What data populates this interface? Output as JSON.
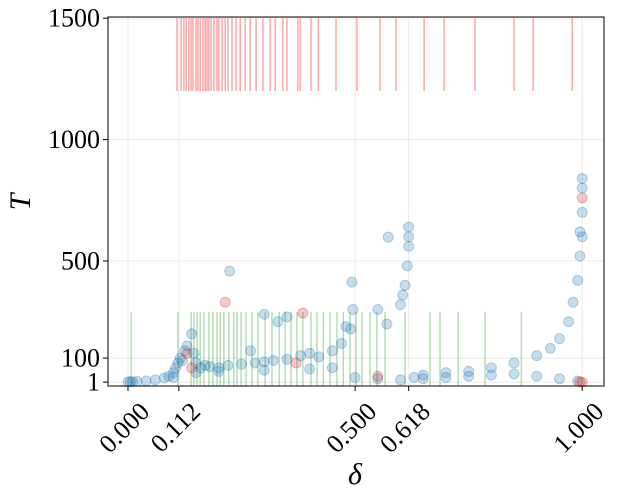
{
  "chart_data": {
    "type": "scatter",
    "x_label": "δ",
    "y_label": "T",
    "xlim": [
      -0.044,
      1.048
    ],
    "ylim": [
      -15,
      1505
    ],
    "xticks": [
      {
        "value": 0,
        "label": "0.000"
      },
      {
        "value": 0.112,
        "label": "0.112"
      },
      {
        "value": 0.5,
        "label": "0.500"
      },
      {
        "value": 0.618,
        "label": "0.618"
      },
      {
        "value": 1,
        "label": "1.000"
      }
    ],
    "yticks": [
      1,
      100,
      500,
      1000,
      1500
    ],
    "grid": true,
    "series": [
      {
        "color": "#1f77b4",
        "x": [
          0,
          0.01,
          0.005,
          0.02,
          0.04,
          0.06,
          0.08,
          0.09,
          0.1,
          0.105,
          0.11,
          0.115,
          0.12,
          0.125,
          0.13,
          0.14,
          0.145,
          0.15,
          0.16,
          0.17,
          0.18,
          0.2,
          0.22,
          0.25,
          0.28,
          0.3,
          0.32,
          0.35,
          0.38,
          0.4,
          0.42,
          0.45,
          0.47,
          0.48,
          0.49,
          0.495,
          0.224,
          0.3,
          0.33,
          0.27,
          0.35,
          0.493,
          0.55,
          0.57,
          0.6,
          0.605,
          0.61,
          0.615,
          0.618,
          0.618,
          0.618,
          0.573,
          0.63,
          0.65,
          0.7,
          0.75,
          0.8,
          0.85,
          0.9,
          0.93,
          0.95,
          0.97,
          0.98,
          0.99,
          0.995,
          1,
          1,
          1,
          1,
          0.995,
          0.5,
          0.55,
          0.6,
          0.65,
          0.7,
          0.75,
          0.8,
          0.85,
          0.9,
          0.95,
          0.99,
          0.1,
          0.15,
          0.2,
          0.3,
          0.4,
          0.45
        ],
        "y": [
          2,
          2.5,
          3,
          4,
          6,
          10,
          18,
          25,
          40,
          60,
          80,
          100,
          90,
          130,
          150,
          200,
          120,
          80,
          60,
          70,
          65,
          60,
          70,
          75,
          80,
          85,
          90,
          95,
          110,
          120,
          105,
          130,
          160,
          230,
          220,
          300,
          458,
          280,
          250,
          130,
          270,
          413,
          300,
          240,
          320,
          360,
          400,
          480,
          560,
          600,
          640,
          598,
          20,
          30,
          40,
          45,
          60,
          80,
          110,
          140,
          180,
          250,
          330,
          420,
          520,
          600,
          700,
          800,
          840,
          620,
          20,
          15,
          10,
          15,
          20,
          25,
          30,
          35,
          25,
          15,
          5,
          20,
          40,
          45,
          50,
          55,
          60
        ]
      },
      {
        "color": "#d62728",
        "x": [
          0.214,
          0.385,
          0.13,
          0.14,
          0.37,
          0.55,
          1,
          1,
          0.995
        ],
        "y": [
          330,
          285,
          120,
          60,
          80,
          25,
          760,
          1,
          2
        ]
      }
    ],
    "rugs": [
      {
        "color": "#ff0000",
        "range": [
          1200,
          1500
        ],
        "x": [
          0.108,
          0.117,
          0.123,
          0.128,
          0.134,
          0.139,
          0.143,
          0.15,
          0.154,
          0.159,
          0.165,
          0.17,
          0.174,
          0.178,
          0.183,
          0.189,
          0.196,
          0.2,
          0.207,
          0.214,
          0.22,
          0.229,
          0.238,
          0.247,
          0.258,
          0.269,
          0.282,
          0.297,
          0.313,
          0.324,
          0.341,
          0.35,
          0.374,
          0.379,
          0.403,
          0.419,
          0.458,
          0.504,
          0.555,
          0.59,
          0.652,
          0.696,
          0.764,
          0.85,
          0.892,
          0.978
        ]
      },
      {
        "color": "#2ca02c",
        "range": [
          -15,
          290
        ],
        "x": [
          0.007,
          0.11,
          0.139,
          0.145,
          0.152,
          0.159,
          0.167,
          0.178,
          0.187,
          0.196,
          0.203,
          0.211,
          0.222,
          0.233,
          0.24,
          0.249,
          0.26,
          0.273,
          0.286,
          0.302,
          0.317,
          0.333,
          0.346,
          0.359,
          0.372,
          0.385,
          0.403,
          0.416,
          0.43,
          0.445,
          0.46,
          0.474,
          0.489,
          0.502,
          0.515,
          0.533,
          0.548,
          0.566,
          0.61,
          0.665,
          0.687,
          0.727,
          0.786,
          0.866
        ]
      }
    ]
  }
}
